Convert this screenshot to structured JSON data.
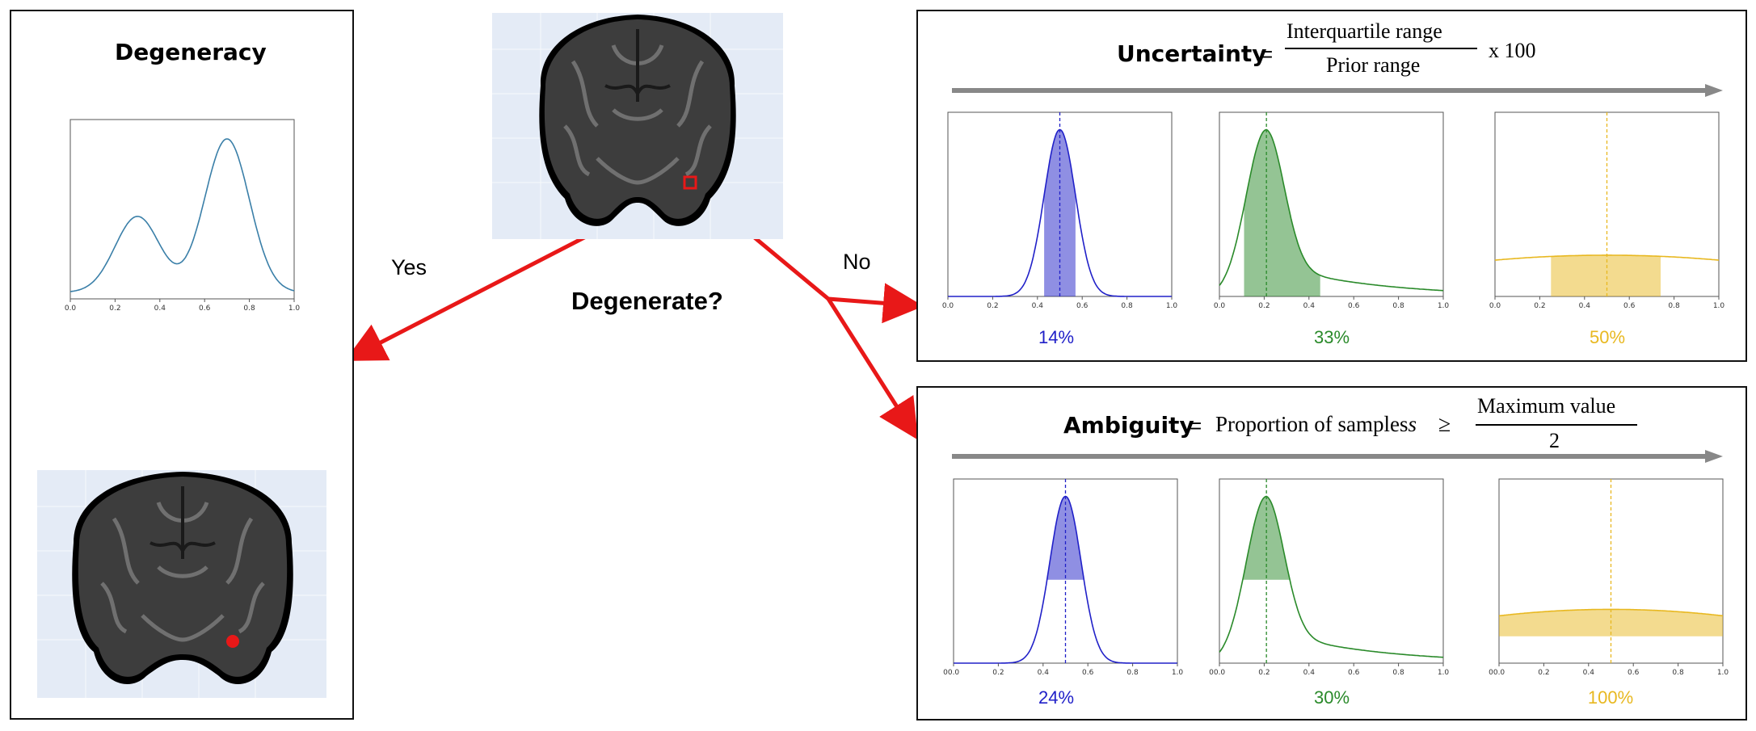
{
  "colors": {
    "blue": "#2020c8",
    "green": "#2a8a2a",
    "gold": "#e8b820",
    "red": "#e81818",
    "curve": "#3a7fa8",
    "arrow_gray": "#888888"
  },
  "left_panel": {
    "title": "Degeneracy",
    "ticks": [
      "0.0",
      "0.2",
      "0.4",
      "0.6",
      "0.8",
      "1.0"
    ]
  },
  "decision": {
    "question": "Degenerate?",
    "yes_label": "Yes",
    "no_label": "No"
  },
  "uncertainty_panel": {
    "title": "Uncertainty",
    "equals": "=",
    "numerator": "Interquartile range",
    "denominator": "Prior range",
    "multiplier": "x 100",
    "plots": [
      {
        "color_key": "blue",
        "percent": "14%"
      },
      {
        "color_key": "green",
        "percent": "33%"
      },
      {
        "color_key": "gold",
        "percent": "50%"
      }
    ],
    "ticks": [
      "0.0",
      "0.2",
      "0.4",
      "0.6",
      "0.8",
      "1.0"
    ]
  },
  "ambiguity_panel": {
    "title": "Ambiguity",
    "equals": "=",
    "lhs_text": "Proportion of samples",
    "var": "s",
    "geq": "≥",
    "numerator": "Maximum value",
    "denominator": "2",
    "plots": [
      {
        "color_key": "blue",
        "percent": "24%"
      },
      {
        "color_key": "green",
        "percent": "30%"
      },
      {
        "color_key": "gold",
        "percent": "100%"
      }
    ],
    "ticks": [
      "0.0",
      "0.2",
      "0.4",
      "0.6",
      "0.8",
      "1.0"
    ],
    "extra_tick": "0"
  }
}
